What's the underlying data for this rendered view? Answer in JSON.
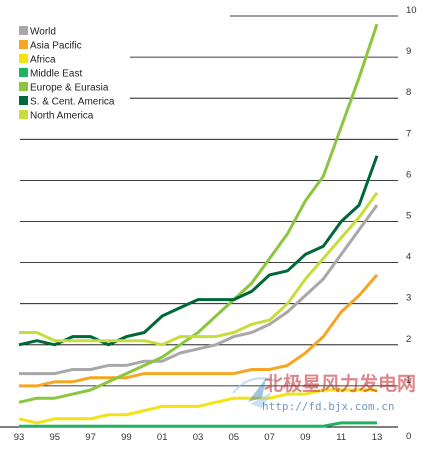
{
  "chart_data": {
    "type": "line",
    "x": [
      1993,
      1994,
      1995,
      1996,
      1997,
      1998,
      1999,
      2000,
      2001,
      2002,
      2003,
      2004,
      2005,
      2006,
      2007,
      2008,
      2009,
      2010,
      2011,
      2012,
      2013
    ],
    "x_tick_labels": [
      "93",
      "95",
      "97",
      "99",
      "01",
      "03",
      "05",
      "07",
      "09",
      "11",
      "13"
    ],
    "y_tick_labels": [
      "0",
      "1",
      "2",
      "3",
      "4",
      "5",
      "6",
      "7",
      "8",
      "9",
      "10"
    ],
    "ylim": [
      0,
      10
    ],
    "xlim": [
      1993,
      2014
    ],
    "grid": "horizontal",
    "legend_position": "top-left",
    "series": [
      {
        "name": "World",
        "color": "#a8a8a8",
        "values": [
          1.3,
          1.3,
          1.3,
          1.4,
          1.4,
          1.5,
          1.5,
          1.6,
          1.6,
          1.8,
          1.9,
          2.0,
          2.2,
          2.3,
          2.5,
          2.8,
          3.2,
          3.6,
          4.2,
          4.8,
          5.4
        ]
      },
      {
        "name": "Asia Pacific",
        "color": "#f5a623",
        "values": [
          1.0,
          1.0,
          1.1,
          1.1,
          1.2,
          1.2,
          1.2,
          1.3,
          1.3,
          1.3,
          1.3,
          1.3,
          1.3,
          1.4,
          1.4,
          1.5,
          1.8,
          2.2,
          2.8,
          3.2,
          3.7
        ]
      },
      {
        "name": "Africa",
        "color": "#f2e313",
        "values": [
          0.2,
          0.1,
          0.2,
          0.2,
          0.2,
          0.3,
          0.3,
          0.4,
          0.5,
          0.5,
          0.5,
          0.6,
          0.7,
          0.7,
          0.7,
          0.8,
          0.8,
          0.9,
          0.9,
          0.9,
          0.9
        ]
      },
      {
        "name": "Middle East",
        "color": "#1fb35f",
        "values": [
          0.02,
          0.02,
          0.02,
          0.02,
          0.02,
          0.02,
          0.02,
          0.02,
          0.02,
          0.02,
          0.02,
          0.02,
          0.02,
          0.02,
          0.02,
          0.02,
          0.02,
          0.02,
          0.1,
          0.1,
          0.1
        ]
      },
      {
        "name": "Europe & Eurasia",
        "color": "#8cc63f",
        "values": [
          0.6,
          0.7,
          0.7,
          0.8,
          0.9,
          1.1,
          1.3,
          1.5,
          1.7,
          2.0,
          2.3,
          2.7,
          3.1,
          3.5,
          4.1,
          4.7,
          5.5,
          6.1,
          7.3,
          8.5,
          9.8
        ]
      },
      {
        "name": "S. & Cent. America",
        "color": "#006838",
        "values": [
          2.0,
          2.1,
          2.0,
          2.2,
          2.2,
          2.0,
          2.2,
          2.3,
          2.7,
          2.9,
          3.1,
          3.1,
          3.1,
          3.3,
          3.7,
          3.8,
          4.2,
          4.4,
          5.0,
          5.4,
          6.6
        ]
      },
      {
        "name": "North America",
        "color": "#c8dd3c",
        "values": [
          2.3,
          2.3,
          2.1,
          2.1,
          2.1,
          2.1,
          2.1,
          2.1,
          2.0,
          2.2,
          2.2,
          2.2,
          2.3,
          2.5,
          2.6,
          3.0,
          3.6,
          4.1,
          4.6,
          5.1,
          5.7
        ]
      }
    ]
  },
  "watermark": {
    "chinese": "北极星风力发电网",
    "url": "http://fd.bjx.com.cn"
  }
}
